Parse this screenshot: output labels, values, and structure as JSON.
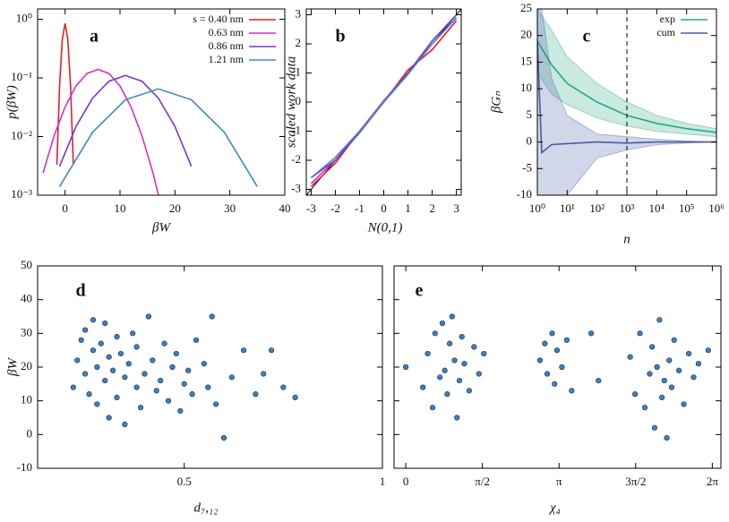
{
  "chart_data": [
    {
      "type": "line",
      "panel_label": "a",
      "xlabel": "βW",
      "ylabel": "p(βW)",
      "xlim": [
        -5,
        40
      ],
      "xticks": [
        0,
        10,
        20,
        30,
        40
      ],
      "y_scale": "log",
      "ylim": [
        0.001,
        1.5
      ],
      "yticks": [
        {
          "value": 0.001,
          "label": "10⁻³"
        },
        {
          "value": 0.01,
          "label": "10⁻²"
        },
        {
          "value": 0.1,
          "label": "10⁻¹"
        },
        {
          "value": 1,
          "label": "10⁰"
        }
      ],
      "legend_position": "upper right",
      "series": [
        {
          "name": "s = 0.40 nm",
          "color": "#e0202a",
          "x": [
            -1.5,
            -1,
            -0.5,
            0,
            0.5,
            1,
            1.5
          ],
          "values": [
            0.0033,
            0.072,
            0.46,
            0.85,
            0.46,
            0.072,
            0.0033
          ]
        },
        {
          "name": "0.63 nm",
          "color": "#d62fc6",
          "x": [
            -4,
            -2,
            0,
            2,
            4,
            6,
            8,
            10,
            12,
            14,
            16,
            17
          ],
          "values": [
            0.0024,
            0.0103,
            0.032,
            0.073,
            0.119,
            0.14,
            0.119,
            0.073,
            0.032,
            0.0103,
            0.0024,
            0.001
          ]
        },
        {
          "name": "0.86 nm",
          "color": "#7b35c9",
          "x": [
            -1,
            2,
            5,
            8,
            11,
            14,
            17,
            20,
            23
          ],
          "values": [
            0.0031,
            0.0149,
            0.045,
            0.088,
            0.11,
            0.088,
            0.045,
            0.0149,
            0.0031
          ]
        },
        {
          "name": "1.21 nm",
          "color": "#3b8bc2",
          "x": [
            -1,
            5,
            11,
            17,
            23,
            29,
            35
          ],
          "values": [
            0.0014,
            0.0118,
            0.0424,
            0.065,
            0.0424,
            0.0118,
            0.0014
          ]
        }
      ]
    },
    {
      "type": "line",
      "panel_label": "b",
      "xlabel": "N(0,1)",
      "ylabel": "scaled work data",
      "xlim": [
        -3.2,
        3.2
      ],
      "xticks": [
        -3,
        -2,
        -1,
        0,
        1,
        2,
        3
      ],
      "ylim": [
        -3.2,
        3.2
      ],
      "yticks": [
        -3,
        -2,
        -1,
        0,
        1,
        2,
        3
      ],
      "series": [
        {
          "color": "#e0202a",
          "x": [
            -3,
            -2,
            -1,
            0,
            1,
            2,
            3
          ],
          "values": [
            -2.9,
            -2.1,
            -1.0,
            0.0,
            1.1,
            1.8,
            2.8
          ]
        },
        {
          "color": "#d62fc6",
          "x": [
            -3,
            -2,
            -1,
            0,
            1,
            2,
            3
          ],
          "values": [
            -2.8,
            -2.0,
            -1.0,
            0.05,
            1.0,
            2.0,
            2.9
          ]
        },
        {
          "color": "#7b35c9",
          "x": [
            -3,
            -2,
            -1,
            0,
            1,
            2,
            3
          ],
          "values": [
            -2.6,
            -2.0,
            -1.05,
            0.0,
            1.0,
            2.1,
            3.0
          ]
        },
        {
          "color": "#3b8bc2",
          "x": [
            -3,
            -2,
            -1,
            0,
            1,
            2,
            3
          ],
          "values": [
            -2.6,
            -1.9,
            -1.0,
            0.0,
            0.95,
            2.0,
            2.9
          ]
        }
      ]
    },
    {
      "type": "line",
      "panel_label": "c",
      "xlabel": "n",
      "ylabel": "βGₙ",
      "x_scale": "log",
      "xlim": [
        1,
        1000000
      ],
      "xticks": [
        {
          "value": 1,
          "label": "10⁰"
        },
        {
          "value": 10,
          "label": "10¹"
        },
        {
          "value": 100,
          "label": "10²"
        },
        {
          "value": 1000,
          "label": "10³"
        },
        {
          "value": 10000,
          "label": "10⁴"
        },
        {
          "value": 100000,
          "label": "10⁵"
        },
        {
          "value": 1000000,
          "label": "10⁶"
        }
      ],
      "ylim": [
        -10,
        25
      ],
      "yticks": [
        -10,
        -5,
        0,
        5,
        10,
        15,
        20,
        25
      ],
      "vline_x": 1000,
      "legend_position": "upper right",
      "series": [
        {
          "name": "exp",
          "color": "#26a887",
          "x": [
            1,
            3,
            10,
            100,
            1000,
            10000,
            100000,
            1000000
          ],
          "values": [
            19,
            14.5,
            11,
            7.5,
            5,
            3.5,
            2.5,
            1.8
          ],
          "lower": [
            13,
            9,
            7,
            4.5,
            3,
            2,
            1.5,
            1
          ],
          "upper": [
            25,
            21,
            16,
            11,
            7.5,
            5,
            3.5,
            2.5
          ]
        },
        {
          "name": "cum",
          "color": "#4c5aa6",
          "x": [
            1,
            1.4,
            3,
            10,
            100,
            1000,
            10000,
            100000,
            1000000
          ],
          "values": [
            19,
            -2,
            -0.5,
            -0.3,
            0,
            -0.2,
            0,
            0,
            0
          ],
          "lower": [
            -10,
            -10,
            -10,
            -10,
            -3,
            -1.5,
            -0.5,
            -0.2,
            0
          ],
          "upper": [
            25,
            25,
            12,
            5,
            1.5,
            1,
            0.5,
            0.2,
            0
          ]
        }
      ]
    },
    {
      "type": "scatter",
      "panel_label": "d",
      "xlabel": "d₇,₁₂",
      "ylabel": "βW",
      "color": "#3a80c4",
      "xlim": [
        0.13,
        1
      ],
      "xticks": [
        0.5,
        1
      ],
      "ylim": [
        -10,
        50
      ],
      "yticks": [
        -10,
        0,
        10,
        20,
        30,
        40,
        50
      ],
      "x": [
        0.22,
        0.23,
        0.24,
        0.25,
        0.25,
        0.26,
        0.27,
        0.27,
        0.28,
        0.28,
        0.29,
        0.3,
        0.3,
        0.31,
        0.31,
        0.32,
        0.33,
        0.33,
        0.34,
        0.35,
        0.35,
        0.36,
        0.37,
        0.38,
        0.38,
        0.39,
        0.4,
        0.41,
        0.42,
        0.43,
        0.44,
        0.45,
        0.46,
        0.47,
        0.48,
        0.49,
        0.5,
        0.51,
        0.52,
        0.53,
        0.55,
        0.56,
        0.57,
        0.58,
        0.6,
        0.62,
        0.65,
        0.68,
        0.7,
        0.72,
        0.75,
        0.78
      ],
      "values": [
        14,
        22,
        28,
        18,
        31,
        12,
        25,
        34,
        20,
        9,
        27,
        16,
        33,
        23,
        5,
        19,
        29,
        11,
        24,
        17,
        3,
        21,
        30,
        14,
        26,
        8,
        18,
        35,
        22,
        13,
        16,
        27,
        10,
        20,
        24,
        7,
        15,
        19,
        12,
        28,
        21,
        14,
        35,
        9,
        -1,
        17,
        25,
        12,
        18,
        25,
        14,
        11
      ]
    },
    {
      "type": "scatter",
      "panel_label": "e",
      "xlabel": "χ₄",
      "color": "#3a80c4",
      "xlim": [
        -0.24,
        6.46
      ],
      "xticks": [
        0,
        {
          "value": 1.5708,
          "label": "π/2"
        },
        {
          "value": 3.1416,
          "label": "π"
        },
        {
          "value": 4.7124,
          "label": "3π/2"
        },
        {
          "value": 6.2832,
          "label": "2π"
        }
      ],
      "ylim": [
        -10,
        50
      ],
      "yticks": [
        -10,
        0,
        10,
        20,
        30,
        40,
        50
      ],
      "ytick_labels": false,
      "x": [
        0.0,
        0.35,
        0.45,
        0.55,
        0.6,
        0.7,
        0.75,
        0.8,
        0.85,
        0.9,
        0.95,
        1.0,
        1.05,
        1.1,
        1.15,
        1.2,
        1.3,
        1.4,
        1.5,
        1.6,
        2.75,
        2.85,
        2.9,
        3.0,
        3.05,
        3.1,
        3.2,
        3.3,
        3.4,
        3.8,
        3.95,
        4.6,
        4.7,
        4.8,
        4.9,
        5.0,
        5.05,
        5.1,
        5.15,
        5.2,
        5.25,
        5.3,
        5.35,
        5.4,
        5.45,
        5.5,
        5.6,
        5.7,
        5.8,
        5.9,
        6.0,
        6.2
      ],
      "values": [
        20,
        14,
        24,
        8,
        30,
        17,
        33,
        19,
        12,
        27,
        35,
        22,
        5,
        16,
        29,
        21,
        13,
        26,
        18,
        24,
        22,
        27,
        18,
        30,
        15,
        25,
        20,
        28,
        13,
        30,
        16,
        23,
        12,
        30,
        8,
        18,
        26,
        2,
        20,
        34,
        11,
        16,
        -1,
        22,
        14,
        28,
        19,
        9,
        24,
        17,
        21,
        25
      ]
    }
  ]
}
